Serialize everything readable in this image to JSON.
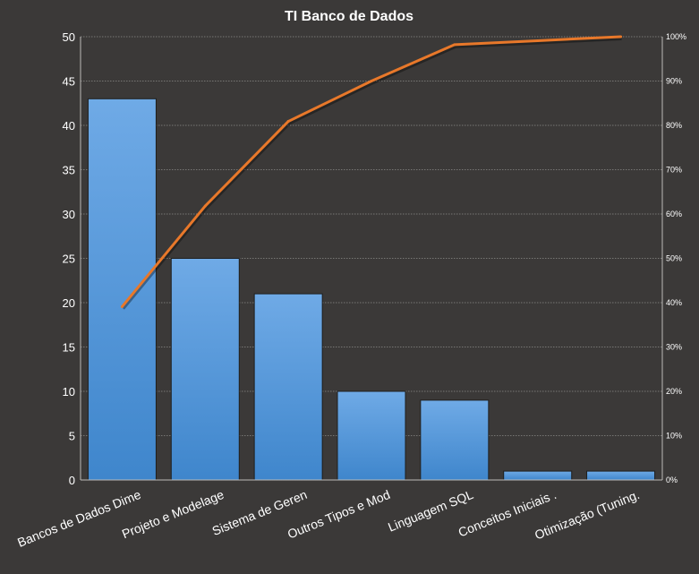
{
  "chart_data": {
    "type": "bar",
    "title": "TI Banco de Dados",
    "xlabel": "",
    "ylabel": "",
    "categories": [
      "Bancos de Dados Dime",
      "Projeto e Modelage",
      "Sistema de Geren",
      "Outros  Tipos e Mod",
      "Linguagem SQL",
      "Conceitos Iniciais .",
      "Otimização (Tuning."
    ],
    "series": [
      {
        "type": "bar",
        "values": [
          43,
          25,
          21,
          10,
          9,
          1,
          1
        ]
      },
      {
        "type": "line",
        "axis": "secondary",
        "values": [
          0.391,
          0.618,
          0.809,
          0.9,
          0.982,
          0.991,
          1.0
        ]
      }
    ],
    "ylim": [
      0,
      50
    ],
    "yticks": [
      "0",
      "5",
      "10",
      "15",
      "20",
      "25",
      "30",
      "35",
      "40",
      "45",
      "50"
    ],
    "y2lim": [
      0,
      1
    ],
    "y2ticks": [
      "0%",
      "10%",
      "20%",
      "30%",
      "40%",
      "50%",
      "60%",
      "70%",
      "80%",
      "90%",
      "100%"
    ],
    "grid": true,
    "legend": "none",
    "colors": {
      "background": "#3b3938",
      "bar_top": "#6faae6",
      "bar_bottom": "#3f86cc",
      "line": "#e8782a",
      "grid": "#8c8a88",
      "text": "#ffffff"
    }
  }
}
